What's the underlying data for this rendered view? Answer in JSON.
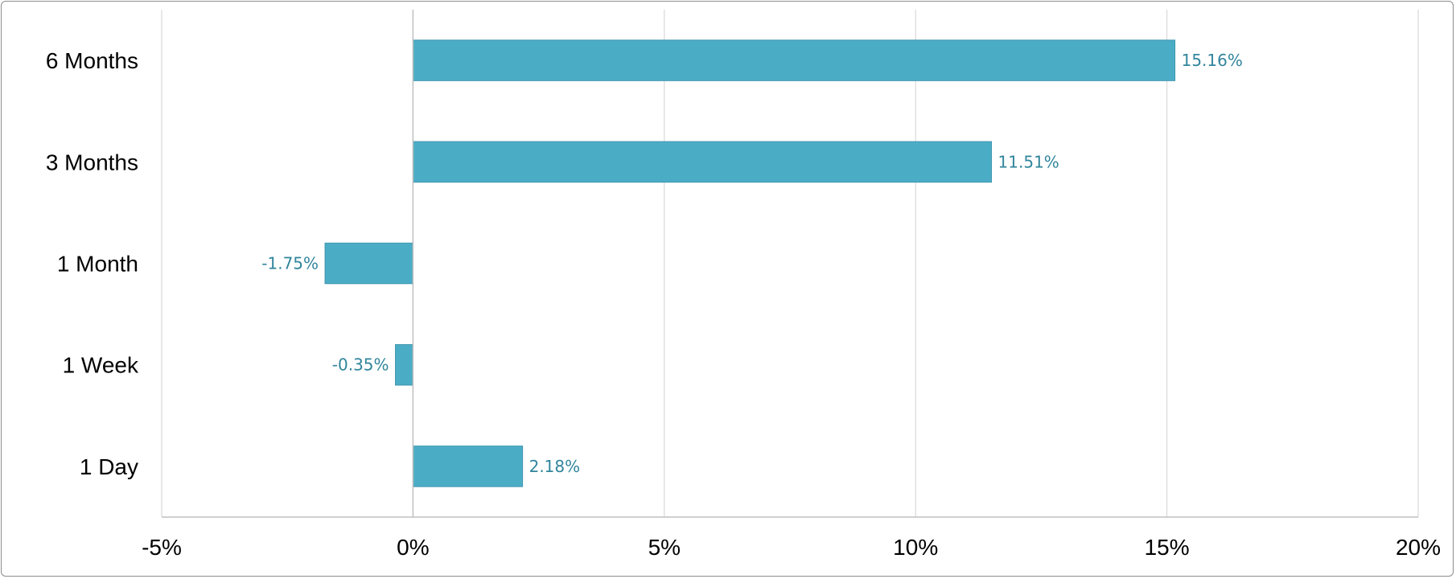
{
  "chart_data": {
    "type": "bar",
    "orientation": "horizontal",
    "title": "",
    "xlabel": "",
    "ylabel": "",
    "categories": [
      "6 Months",
      "3 Months",
      "1 Month",
      "1 Week",
      "1 Day"
    ],
    "values": [
      15.16,
      11.51,
      -1.75,
      -0.35,
      2.18
    ],
    "data_labels": [
      "15.16%",
      "11.51%",
      "-1.75%",
      "-0.35%",
      "2.18%"
    ],
    "xlim": [
      -5,
      20
    ],
    "x_ticks": [
      -5,
      0,
      5,
      10,
      15,
      20
    ],
    "x_tick_labels": [
      "-5%",
      "0%",
      "5%",
      "10%",
      "15%",
      "20%"
    ],
    "grid": "vertical",
    "legend": "none",
    "colors": {
      "bar_fill": "#4BACC6",
      "bar_stroke": "#3F97AF",
      "data_label": "#31859C",
      "grid": "#D9D9D9",
      "axis": "#BFBFBF"
    }
  }
}
